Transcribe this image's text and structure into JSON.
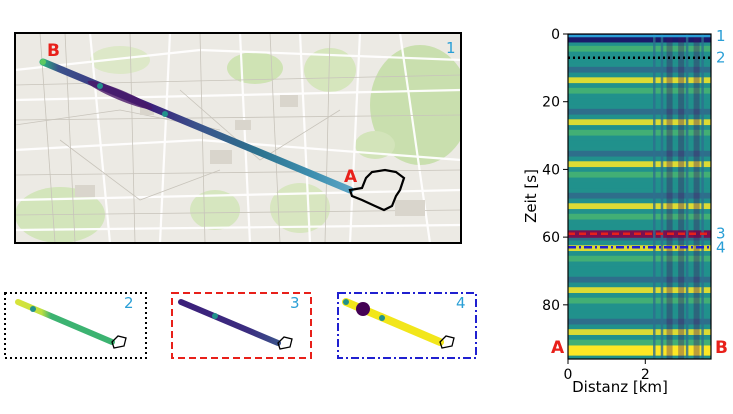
{
  "map": {
    "panel_label": "1",
    "start_label": "B",
    "end_label": "A"
  },
  "insets": [
    {
      "label": "2",
      "border": "dotted",
      "border_color": "#000000",
      "dominant_color": "#3cb371"
    },
    {
      "label": "3",
      "border": "dashed",
      "border_color": "#e8201a",
      "dominant_color": "#3b1f7a"
    },
    {
      "label": "4",
      "border": "dash-dot",
      "border_color": "#2020d0",
      "dominant_color": "#f2e61a"
    }
  ],
  "colors": {
    "red_label": "#e8201a",
    "blue_label": "#2a9fd6",
    "viridis": [
      "#440154",
      "#3b528b",
      "#21918c",
      "#5ec962",
      "#fde725"
    ]
  },
  "chart_data": {
    "type": "heatmap",
    "xlabel": "Distanz [km]",
    "ylabel": "Zeit [s]",
    "xlim": [
      0,
      3.7
    ],
    "ylim": [
      0,
      96
    ],
    "y_inverted": true,
    "xticks": [
      0,
      2
    ],
    "yticks": [
      0,
      20,
      40,
      60,
      80
    ],
    "colormap": "viridis",
    "corner_labels": {
      "left": "A",
      "right": "B"
    },
    "markers": [
      {
        "label": "1",
        "time": 0,
        "style": "solid",
        "color": "#2a9fd6"
      },
      {
        "label": "2",
        "time": 7,
        "style": "dotted",
        "color": "#000000"
      },
      {
        "label": "3",
        "time": 59,
        "style": "dashed",
        "color": "#e8201a"
      },
      {
        "label": "4",
        "time": 63,
        "style": "dash-dot",
        "color": "#2020d0"
      }
    ]
  }
}
